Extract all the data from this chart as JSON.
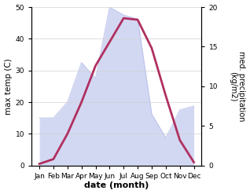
{
  "months": [
    "Jan",
    "Feb",
    "Mar",
    "Apr",
    "May",
    "Jun",
    "Jul",
    "Aug",
    "Sep",
    "Oct",
    "Nov",
    "Dec"
  ],
  "temperature": [
    0.5,
    2.0,
    10.0,
    20.0,
    31.5,
    39.0,
    46.5,
    46.0,
    37.0,
    22.0,
    8.0,
    1.0
  ],
  "precipitation": [
    6.0,
    6.0,
    8.0,
    13.0,
    11.0,
    20.0,
    19.0,
    18.5,
    6.5,
    3.5,
    7.0,
    7.5
  ],
  "temp_color": "#b03060",
  "precip_color": "#b0b8e8",
  "precip_fill_alpha": 0.55,
  "temp_ylim": [
    0,
    50
  ],
  "precip_ylim": [
    0,
    20
  ],
  "temp_yticks": [
    0,
    10,
    20,
    30,
    40,
    50
  ],
  "precip_yticks": [
    0,
    5,
    10,
    15,
    20
  ],
  "xlabel": "date (month)",
  "ylabel_left": "max temp (C)",
  "ylabel_right": "med. precipitation\n(kg/m2)",
  "temp_linewidth": 2.0,
  "background_color": "#ffffff"
}
